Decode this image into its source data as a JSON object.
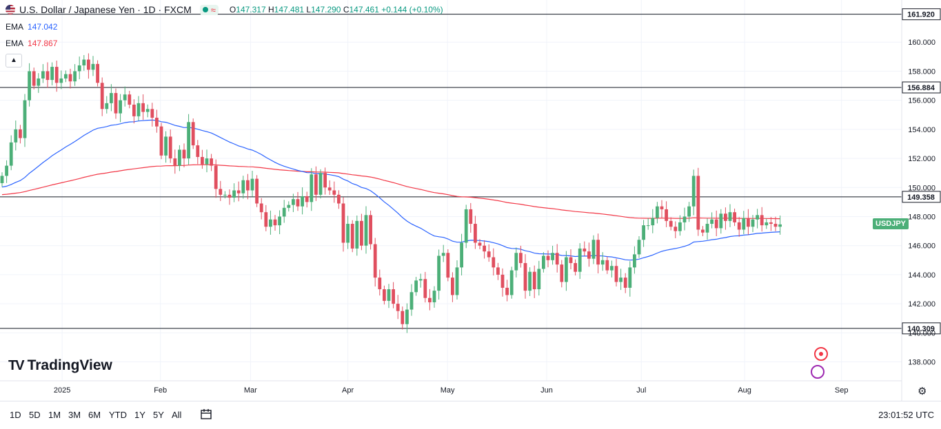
{
  "header": {
    "symbol_title": "U.S. Dollar / Japanese Yen · 1D · FXCM",
    "o_label": "O",
    "o_value": "147.317",
    "h_label": "H",
    "h_value": "147.481",
    "l_label": "L",
    "l_value": "147.290",
    "c_label": "C",
    "c_value": "147.461",
    "change": "+0.144 (+0.10%)",
    "collapse_icon": "chevron-up-icon"
  },
  "ema_fast": {
    "label": "EMA",
    "value": "147.042",
    "color": "#2962ff"
  },
  "ema_slow": {
    "label": "EMA",
    "value": "147.867",
    "color": "#f23645"
  },
  "logo_text": "TradingView",
  "symbol_tag": "USDJPY",
  "timeframes": [
    "1D",
    "5D",
    "1M",
    "3M",
    "6M",
    "YTD",
    "1Y",
    "5Y",
    "All"
  ],
  "clock": "23:01:52 UTC",
  "colors": {
    "up": "#089981",
    "down": "#f23645",
    "up_candle": "#4caf78",
    "down_candle": "#e04f5f"
  },
  "chart_data": {
    "type": "candlestick",
    "title": "U.S. Dollar / Japanese Yen · 1D · FXCM",
    "ylim": [
      136.7,
      162.9
    ],
    "y_ticks": [
      138.0,
      140.0,
      142.0,
      144.0,
      146.0,
      148.0,
      150.0,
      152.0,
      154.0,
      156.0,
      158.0,
      160.0
    ],
    "y_tick_labels": [
      "138.000",
      "140.000",
      "142.000",
      "144.000",
      "146.000",
      "148.000",
      "150.000",
      "152.000",
      "154.000",
      "156.000",
      "158.000",
      "160.000"
    ],
    "x_labels": [
      "2025",
      "Feb",
      "Mar",
      "Apr",
      "May",
      "Jun",
      "Jul",
      "Aug",
      "Sep"
    ],
    "x_label_day_index": [
      13.2,
      34.8,
      54.6,
      76.0,
      97.9,
      119.7,
      140.5,
      163.2,
      184.5
    ],
    "horizontal_lines": [
      {
        "value": 161.92,
        "label": "161.920"
      },
      {
        "value": 156.884,
        "label": "156.884"
      },
      {
        "value": 149.358,
        "label": "149.358"
      },
      {
        "value": 140.309,
        "label": "140.309"
      }
    ],
    "last_price_label": "USDJPY",
    "candles_close": [
      150.8,
      151.5,
      153.1,
      154.0,
      153.4,
      156.0,
      158.0,
      157.0,
      157.5,
      158.0,
      157.4,
      158.3,
      157.2,
      157.5,
      157.8,
      157.3,
      158.0,
      158.4,
      158.8,
      158.1,
      158.5,
      157.2,
      155.4,
      155.8,
      156.5,
      155.1,
      156.0,
      156.4,
      155.7,
      154.9,
      155.8,
      155.2,
      155.4,
      154.8,
      154.2,
      152.2,
      153.5,
      152.0,
      151.5,
      152.6,
      152.0,
      154.5,
      152.9,
      152.1,
      151.6,
      152.0,
      151.5,
      149.9,
      149.5,
      149.5,
      149.3,
      149.8,
      149.6,
      150.5,
      149.8,
      150.6,
      148.9,
      148.3,
      147.3,
      147.8,
      147.4,
      148.0,
      148.6,
      148.8,
      149.2,
      148.7,
      149.4,
      149.0,
      150.9,
      149.5,
      151.0,
      150.0,
      149.8,
      149.5,
      148.9,
      146.2,
      147.5,
      145.8,
      147.7,
      146.0,
      148.1,
      146.1,
      143.8,
      143.0,
      142.2,
      143.0,
      142.0,
      141.5,
      140.6,
      141.6,
      142.8,
      143.6,
      143.7,
      142.4,
      142.1,
      142.9,
      145.3,
      145.5,
      143.8,
      142.6,
      144.5,
      146.2,
      148.5,
      147.5,
      146.2,
      146.0,
      145.6,
      145.2,
      144.5,
      144.0,
      143.1,
      142.6,
      144.3,
      145.5,
      144.8,
      142.9,
      144.2,
      143.0,
      144.4,
      145.3,
      145.0,
      145.5,
      144.7,
      143.5,
      145.2,
      144.8,
      144.2,
      145.8,
      145.6,
      145.1,
      146.4,
      144.7,
      145.0,
      144.3,
      144.6,
      143.5,
      143.8,
      143.1,
      144.5,
      145.4,
      146.4,
      147.4,
      147.4,
      147.9,
      148.7,
      148.5,
      147.7,
      147.3,
      147.0,
      147.6,
      148.0,
      148.7,
      150.8,
      147.1,
      146.9,
      147.5,
      147.8,
      147.2,
      148.2,
      147.7,
      148.3,
      147.6,
      147.1,
      147.9,
      147.3,
      147.8,
      148.1,
      147.4,
      147.6,
      147.5,
      147.3,
      147.46
    ]
  }
}
